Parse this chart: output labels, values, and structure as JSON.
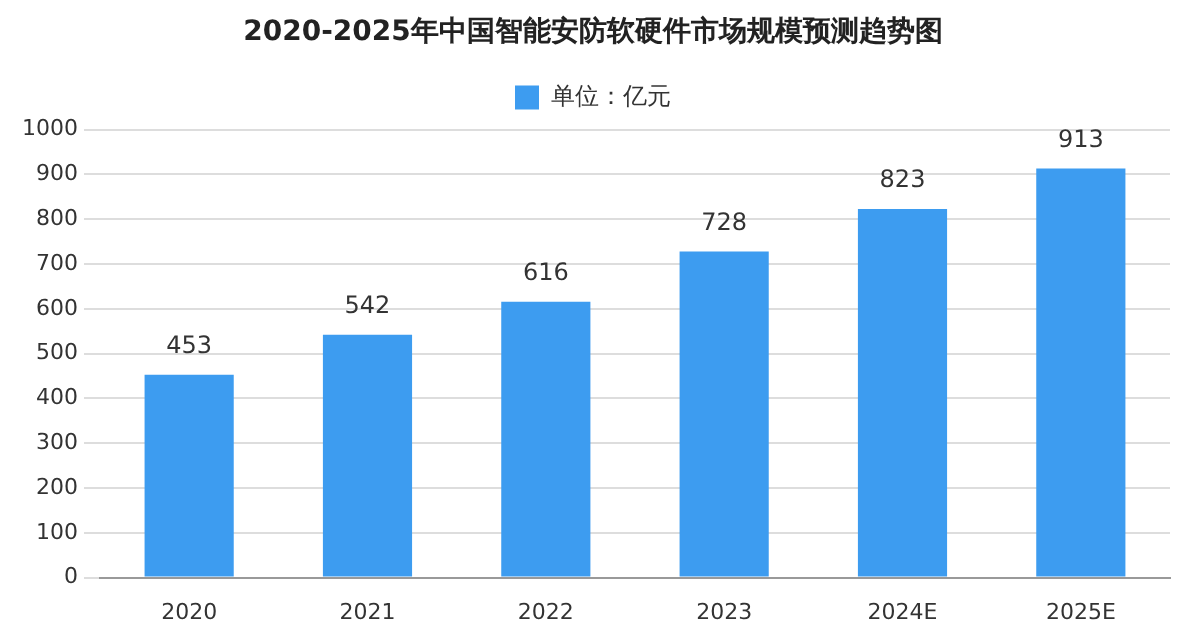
{
  "chart_data": {
    "type": "bar",
    "title": "2020-2025年中国智能安防软硬件市场规模预测趋势图",
    "categories": [
      "2020",
      "2021",
      "2022",
      "2023",
      "2024E",
      "2025E"
    ],
    "series": [
      {
        "name": "单位：亿元",
        "color": "#3d9cf0",
        "values": [
          453,
          542,
          616,
          728,
          823,
          913
        ]
      }
    ],
    "ylim": [
      0,
      1000
    ],
    "yticks": [
      0,
      100,
      200,
      300,
      400,
      500,
      600,
      700,
      800,
      900,
      1000
    ],
    "grid": "y",
    "legend": "top",
    "data_labels": true
  }
}
